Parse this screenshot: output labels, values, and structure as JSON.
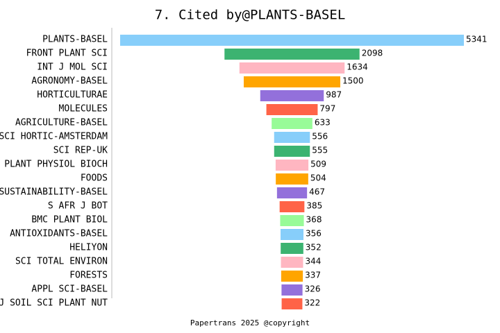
{
  "chart_data": {
    "type": "funnel",
    "title": "7. Cited by@PLANTS-BASEL",
    "caption": "Papertrans 2025 @copyright",
    "categories": [
      "PLANTS-BASEL",
      "FRONT PLANT SCI",
      "INT J MOL SCI",
      "AGRONOMY-BASEL",
      "HORTICULTURAE",
      "MOLECULES",
      "AGRICULTURE-BASEL",
      "SCI HORTIC-AMSTERDAM",
      "SCI REP-UK",
      "PLANT PHYSIOL BIOCH",
      "FOODS",
      "SUSTAINABILITY-BASEL",
      "S AFR J BOT",
      "BMC PLANT BIOL",
      "ANTIOXIDANTS-BASEL",
      "HELIYON",
      "SCI TOTAL ENVIRON",
      "FORESTS",
      "APPL SCI-BASEL",
      "J SOIL SCI PLANT NUT"
    ],
    "values": [
      5341,
      2098,
      1634,
      1500,
      987,
      797,
      633,
      556,
      555,
      509,
      504,
      467,
      385,
      368,
      356,
      352,
      344,
      337,
      326,
      322
    ],
    "colors": [
      "#87cefa",
      "#3cb371",
      "#ffb6c1",
      "#ffa500",
      "#9370db",
      "#ff6347",
      "#98fb98"
    ]
  }
}
